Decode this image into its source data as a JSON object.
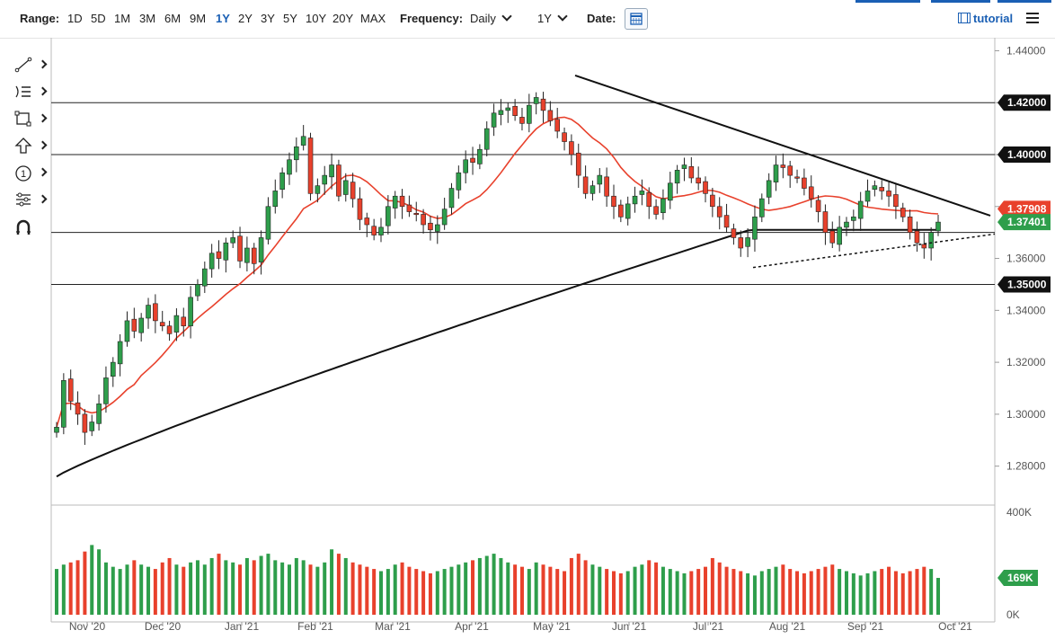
{
  "toolbar": {
    "range_label": "Range:",
    "ranges": [
      "1D",
      "5D",
      "1M",
      "3M",
      "6M",
      "9M",
      "1Y",
      "2Y",
      "3Y",
      "5Y",
      "10Y",
      "20Y",
      "MAX"
    ],
    "active_range": "1Y",
    "frequency_label": "Frequency:",
    "frequency_value": "Daily",
    "period_value": "1Y",
    "date_label": "Date:",
    "tutorial_label": "tutorial"
  },
  "sidebar": {
    "tools": [
      "line-tool-icon",
      "list-tool-icon",
      "rectangle-tool-icon",
      "arrow-up-tool-icon",
      "number-tool-icon",
      "settings-tool-icon",
      "magnet-icon"
    ]
  },
  "colors": {
    "up": "#2e9e4b",
    "down": "#e8412c",
    "ma50": "#e8412c",
    "ma200": "#111111",
    "trend": "#111111",
    "price_tag": "#2e9e4b",
    "level_tag": "#111111",
    "volume_tag": "#2e9e4b"
  },
  "chart_data": {
    "type": "candlestick",
    "price_axis": {
      "ticks": [
        "1.44000",
        "1.42000",
        "1.40000",
        "1.38000",
        "1.36000",
        "1.34000",
        "1.32000",
        "1.30000",
        "1.28000"
      ],
      "range": [
        1.265,
        1.445
      ]
    },
    "volume_axis": {
      "ticks": [
        "400K",
        "0K"
      ],
      "range": [
        0,
        400000
      ]
    },
    "x_ticks": [
      "Nov '20",
      "Dec '20",
      "Jan '21",
      "Feb '21",
      "Mar '21",
      "Apr '21",
      "May '21",
      "Jun '21",
      "Jul '21",
      "Aug '21",
      "Sep '21",
      "Oct '21"
    ],
    "horizontal_levels": [
      {
        "value": 1.42,
        "label": "1.42000"
      },
      {
        "value": 1.4,
        "label": "1.40000"
      },
      {
        "value": 1.37,
        "label": ""
      },
      {
        "value": 1.35,
        "label": "1.35000"
      }
    ],
    "price_tags": [
      {
        "label": "1.37908",
        "value": 1.37908,
        "series": "ma50"
      },
      {
        "label": "1.37401",
        "value": 1.37401,
        "series": "last"
      }
    ],
    "volume_tag": {
      "label": "169K",
      "value": 169000
    },
    "close_series": [
      1.295,
      1.313,
      1.305,
      1.3,
      1.293,
      1.297,
      1.304,
      1.314,
      1.32,
      1.328,
      1.336,
      1.332,
      1.337,
      1.342,
      1.336,
      1.334,
      1.331,
      1.338,
      1.334,
      1.345,
      1.35,
      1.356,
      1.362,
      1.36,
      1.366,
      1.368,
      1.359,
      1.364,
      1.358,
      1.368,
      1.38,
      1.386,
      1.393,
      1.398,
      1.403,
      1.407,
      1.385,
      1.388,
      1.392,
      1.396,
      1.384,
      1.39,
      1.383,
      1.375,
      1.373,
      1.369,
      1.372,
      1.38,
      1.384,
      1.38,
      1.378,
      1.377,
      1.373,
      1.371,
      1.373,
      1.379,
      1.387,
      1.393,
      1.398,
      1.397,
      1.402,
      1.41,
      1.416,
      1.417,
      1.418,
      1.415,
      1.412,
      1.419,
      1.422,
      1.417,
      1.413,
      1.409,
      1.405,
      1.4,
      1.392,
      1.385,
      1.388,
      1.392,
      1.384,
      1.38,
      1.376,
      1.381,
      1.384,
      1.386,
      1.38,
      1.377,
      1.383,
      1.389,
      1.394,
      1.396,
      1.391,
      1.389,
      1.385,
      1.38,
      1.376,
      1.372,
      1.368,
      1.364,
      1.368,
      1.376,
      1.383,
      1.39,
      1.396,
      1.395,
      1.392,
      1.391,
      1.387,
      1.383,
      1.378,
      1.37,
      1.366,
      1.372,
      1.374,
      1.376,
      1.382,
      1.386,
      1.388,
      1.386,
      1.384,
      1.38,
      1.376,
      1.37,
      1.366,
      1.364,
      1.37,
      1.374
    ],
    "volume_series": [
      210,
      230,
      240,
      250,
      290,
      320,
      300,
      240,
      220,
      210,
      230,
      250,
      230,
      220,
      210,
      240,
      260,
      230,
      220,
      240,
      250,
      230,
      260,
      280,
      250,
      240,
      230,
      260,
      250,
      270,
      280,
      250,
      240,
      230,
      260,
      250,
      230,
      220,
      240,
      300,
      280,
      260,
      240,
      230,
      220,
      210,
      200,
      210,
      230,
      240,
      220,
      210,
      200,
      190,
      200,
      210,
      220,
      230,
      240,
      250,
      260,
      270,
      280,
      260,
      240,
      230,
      220,
      210,
      240,
      230,
      220,
      210,
      200,
      260,
      280,
      250,
      230,
      220,
      210,
      200,
      190,
      200,
      220,
      230,
      250,
      240,
      220,
      210,
      200,
      190,
      200,
      210,
      220,
      260,
      240,
      220,
      210,
      200,
      190,
      180,
      200,
      210,
      220,
      230,
      210,
      200,
      190,
      200,
      210,
      220,
      230,
      210,
      200,
      190,
      180,
      190,
      200,
      210,
      220,
      200,
      190,
      200,
      210,
      220,
      210,
      169
    ]
  }
}
